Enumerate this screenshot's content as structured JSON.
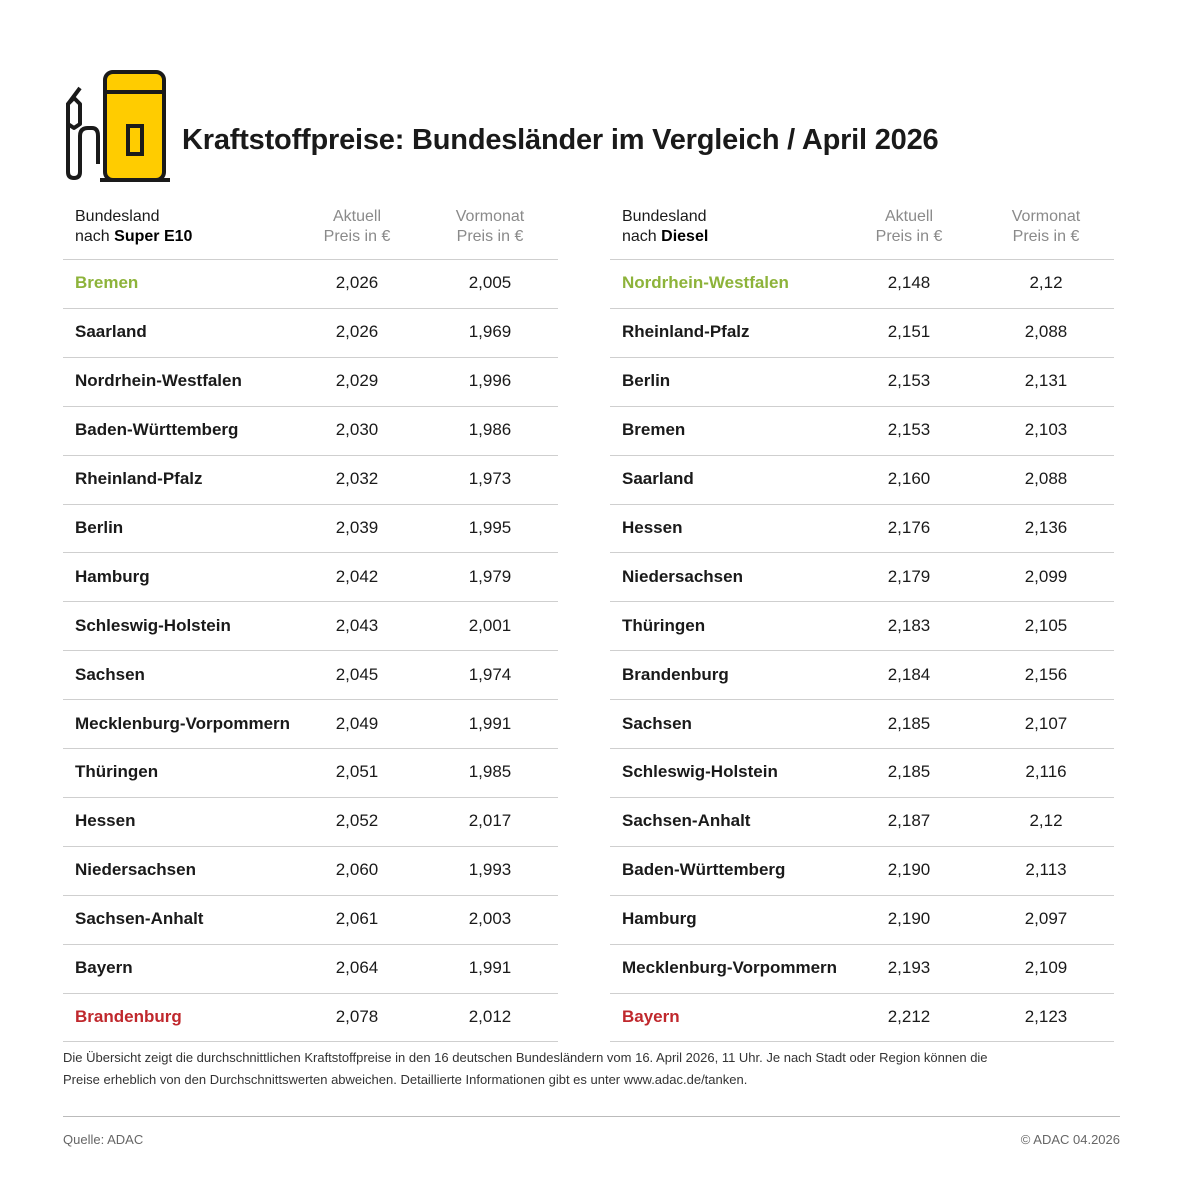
{
  "header": {
    "title": "Kraftstoffpreise: Bundesländer im Vergleich / April 2026"
  },
  "tables": [
    {
      "columns": [
        {
          "line1": "Bundesland",
          "prefix": "nach",
          "emphasis": "Super E10"
        },
        {
          "line1": "Aktuell",
          "line2": "Preis in €"
        },
        {
          "line1": "Vormonat",
          "line2": "Preis in €"
        }
      ],
      "rows": [
        [
          "Bremen",
          "2,026",
          "2,005"
        ],
        [
          "Saarland",
          "2,026",
          "1,969"
        ],
        [
          "Nordrhein-Westfalen",
          "2,029",
          "1,996"
        ],
        [
          "Baden-Württemberg",
          "2,030",
          "1,986"
        ],
        [
          "Rheinland-Pfalz",
          "2,032",
          "1,973"
        ],
        [
          "Berlin",
          "2,039",
          "1,995"
        ],
        [
          "Hamburg",
          "2,042",
          "1,979"
        ],
        [
          "Schleswig-Holstein",
          "2,043",
          "2,001"
        ],
        [
          "Sachsen",
          "2,045",
          "1,974"
        ],
        [
          "Mecklenburg-Vorpommern",
          "2,049",
          "1,991"
        ],
        [
          "Thüringen",
          "2,051",
          "1,985"
        ],
        [
          "Hessen",
          "2,052",
          "2,017"
        ],
        [
          "Niedersachsen",
          "2,060",
          "1,993"
        ],
        [
          "Sachsen-Anhalt",
          "2,061",
          "2,003"
        ],
        [
          "Bayern",
          "2,064",
          "1,991"
        ],
        [
          "Brandenburg",
          "2,078",
          "2,012"
        ]
      ]
    },
    {
      "columns": [
        {
          "line1": "Bundesland",
          "prefix": "nach",
          "emphasis": "Diesel"
        },
        {
          "line1": "Aktuell",
          "line2": "Preis in €"
        },
        {
          "line1": "Vormonat",
          "line2": "Preis in €"
        }
      ],
      "rows": [
        [
          "Nordrhein-Westfalen",
          "2,148",
          "2,12"
        ],
        [
          "Rheinland-Pfalz",
          "2,151",
          "2,088"
        ],
        [
          "Berlin",
          "2,153",
          "2,131"
        ],
        [
          "Bremen",
          "2,153",
          "2,103"
        ],
        [
          "Saarland",
          "2,160",
          "2,088"
        ],
        [
          "Hessen",
          "2,176",
          "2,136"
        ],
        [
          "Niedersachsen",
          "2,179",
          "2,099"
        ],
        [
          "Thüringen",
          "2,183",
          "2,105"
        ],
        [
          "Brandenburg",
          "2,184",
          "2,156"
        ],
        [
          "Sachsen",
          "2,185",
          "2,107"
        ],
        [
          "Schleswig-Holstein",
          "2,185",
          "2,116"
        ],
        [
          "Sachsen-Anhalt",
          "2,187",
          "2,12"
        ],
        [
          "Baden-Württemberg",
          "2,190",
          "2,113"
        ],
        [
          "Hamburg",
          "2,190",
          "2,097"
        ],
        [
          "Mecklenburg-Vorpommern",
          "2,193",
          "2,109"
        ],
        [
          "Bayern",
          "2,212",
          "2,123"
        ]
      ]
    }
  ],
  "footer": {
    "note": [
      "Die Übersicht zeigt die durchschnittlichen Kraftstoffpreise in den 16 deutschen Bundesländern vom 16. April 2026, 11 Uhr. Je nach Stadt oder Region können die",
      "Preise erheblich von den Durchschnittswerten abweichen. Detaillierte Informationen gibt es unter www.adac.de/tanken."
    ],
    "source": "Quelle: ADAC",
    "copyright": "© ADAC 04.2026"
  }
}
